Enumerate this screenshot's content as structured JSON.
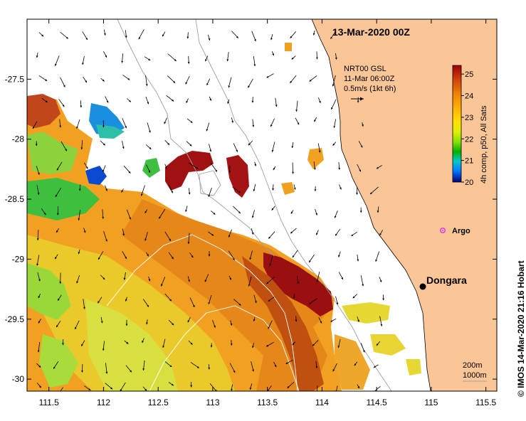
{
  "map": {
    "title": "13-Mar-2020 00Z",
    "x_ticks": [
      "111.5",
      "112",
      "112.5",
      "113",
      "113.5",
      "114",
      "114.5",
      "115",
      "115.5"
    ],
    "y_ticks": [
      "-27.5",
      "-28",
      "-28.5",
      "-29",
      "-29.5",
      "-30"
    ],
    "lon_range": [
      111.3,
      115.6
    ],
    "lat_range": [
      -30.1,
      -27.0
    ],
    "current_label": {
      "line1": "NRT00 GSL",
      "line2": "11-Mar 06:00Z",
      "line3": "0.5m/s (1kt 6h)"
    },
    "colorbar": {
      "ticks": [
        "25",
        "24",
        "23",
        "22",
        "21",
        "20"
      ],
      "label": "4h comp, p50, All Sats",
      "min": 20,
      "max": 25.4,
      "colors": [
        "#00007f",
        "#0000ff",
        "#0080ff",
        "#00c8c8",
        "#00c000",
        "#80e000",
        "#e0f000",
        "#ffe000",
        "#ffb000",
        "#f08000",
        "#c84000",
        "#a00000"
      ]
    },
    "places": {
      "argo": "Argo",
      "dongara": "Dongara"
    },
    "contours": {
      "c200": "200m",
      "c1000": "1000m"
    },
    "copyright": "©  IMOS 14-Mar-2020 21:16 Hobart",
    "colors": {
      "land": "#fbc697",
      "argo": "#e040e0",
      "warm": "#f5a623",
      "hot": "#a01010",
      "cool": "#8cd23c"
    }
  }
}
